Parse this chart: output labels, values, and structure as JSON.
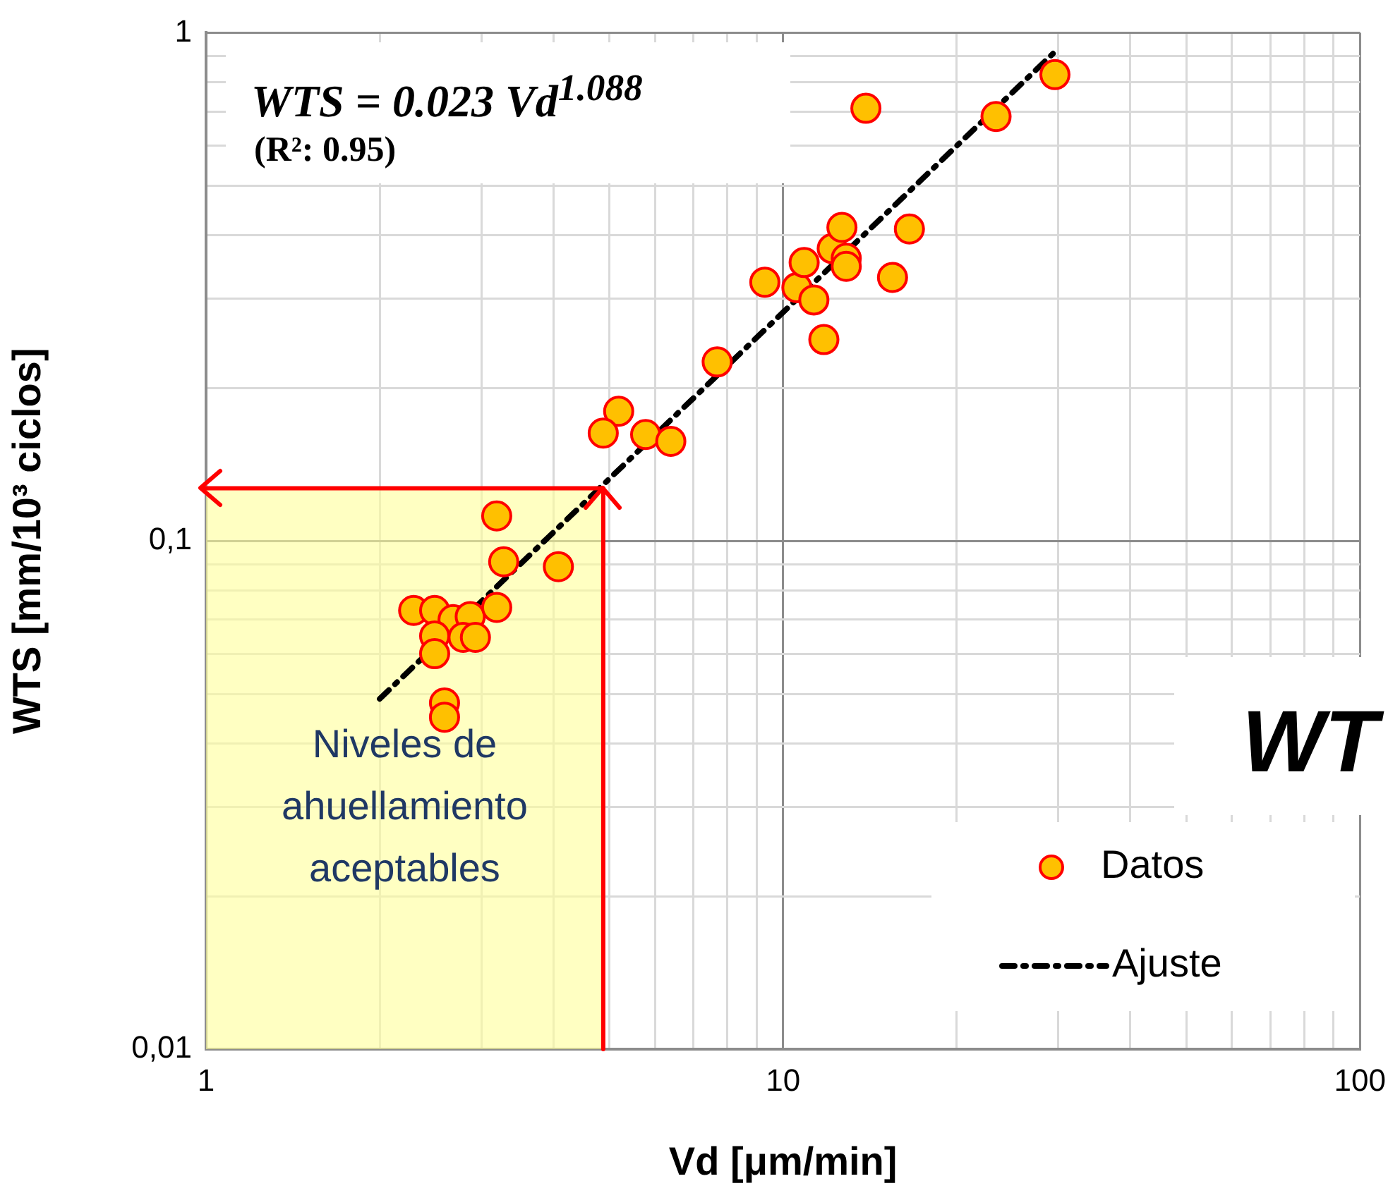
{
  "chart_data": {
    "type": "scatter",
    "xlabel": "Vd [μm/min]",
    "ylabel": "WTS [mm/10³ ciclos]",
    "log": "xy",
    "xlim": [
      1,
      100
    ],
    "ylim": [
      0.01,
      1
    ],
    "xticks": [
      1,
      {
        "value": 2,
        "label": null
      },
      {
        "value": 3,
        "label": null
      },
      {
        "value": 4,
        "label": null
      },
      {
        "value": 5,
        "label": null
      },
      {
        "value": 6,
        "label": null
      },
      {
        "value": 7,
        "label": null
      },
      {
        "value": 8,
        "label": null
      },
      {
        "value": 9,
        "label": null
      },
      10,
      {
        "value": 20,
        "label": null
      },
      {
        "value": 30,
        "label": null
      },
      {
        "value": 40,
        "label": null
      },
      {
        "value": 50,
        "label": null
      },
      {
        "value": 60,
        "label": null
      },
      {
        "value": 70,
        "label": null
      },
      {
        "value": 80,
        "label": null
      },
      {
        "value": 90,
        "label": null
      },
      100
    ],
    "yticks": [
      {
        "value": 0.01,
        "label": "0,01"
      },
      {
        "value": 0.02,
        "label": null
      },
      {
        "value": 0.03,
        "label": null
      },
      {
        "value": 0.04,
        "label": null
      },
      {
        "value": 0.05,
        "label": null
      },
      {
        "value": 0.06,
        "label": null
      },
      {
        "value": 0.07,
        "label": null
      },
      {
        "value": 0.08,
        "label": null
      },
      {
        "value": 0.09,
        "label": null
      },
      {
        "value": 0.1,
        "label": "0,1"
      },
      {
        "value": 0.2,
        "label": null
      },
      {
        "value": 0.3,
        "label": null
      },
      {
        "value": 0.4,
        "label": null
      },
      {
        "value": 0.5,
        "label": null
      },
      {
        "value": 0.6,
        "label": null
      },
      {
        "value": 0.7,
        "label": null
      },
      {
        "value": 0.8,
        "label": null
      },
      {
        "value": 0.9,
        "label": null
      },
      {
        "value": 1,
        "label": "1"
      }
    ],
    "grid": true,
    "legend": "bottom right",
    "marker": "circle",
    "series": [
      {
        "name": "Datos",
        "type": "scatter",
        "color": "#ffc000",
        "x": [
          3.19,
          3.28,
          4.08,
          2.29,
          2.49,
          2.68,
          2.87,
          3.19,
          2.49,
          2.79,
          2.93,
          2.49,
          2.59,
          2.59,
          5.19,
          4.88,
          5.78,
          6.39,
          7.69,
          9.3,
          10.57,
          10.88,
          11.31,
          11.77,
          12.17,
          12.65,
          12.87,
          12.87,
          15.48,
          16.56,
          13.92,
          23.4,
          29.6
        ],
        "values": [
          0.112,
          0.091,
          0.089,
          0.073,
          0.073,
          0.07,
          0.071,
          0.074,
          0.065,
          0.0646,
          0.0646,
          0.06,
          0.048,
          0.045,
          0.18,
          0.163,
          0.162,
          0.157,
          0.225,
          0.323,
          0.315,
          0.353,
          0.298,
          0.249,
          0.376,
          0.414,
          0.36,
          0.347,
          0.33,
          0.411,
          0.71,
          0.684,
          0.827
        ]
      },
      {
        "name": "Ajuste",
        "type": "line",
        "color": "#000000",
        "x": [
          2,
          30
        ],
        "values": [
          0.0489,
          0.931
        ],
        "line_style": "dashed",
        "marker": "none"
      }
    ],
    "bands": [
      {
        "axis": "x",
        "from": 1,
        "to": 4.88,
        "color": "#ffff99",
        "label": "Niveles de ahuellamiento aceptables"
      }
    ],
    "ref_lines": [
      {
        "axis": "x",
        "value": 4.88,
        "color": "#ff0000"
      },
      {
        "axis": "y",
        "value": 0.127,
        "color": "#ff0000"
      }
    ],
    "annotations": [
      "WTS = 0.023 Vd$^{1.088}$",
      "(R²: 0.95)",
      "WT"
    ]
  }
}
